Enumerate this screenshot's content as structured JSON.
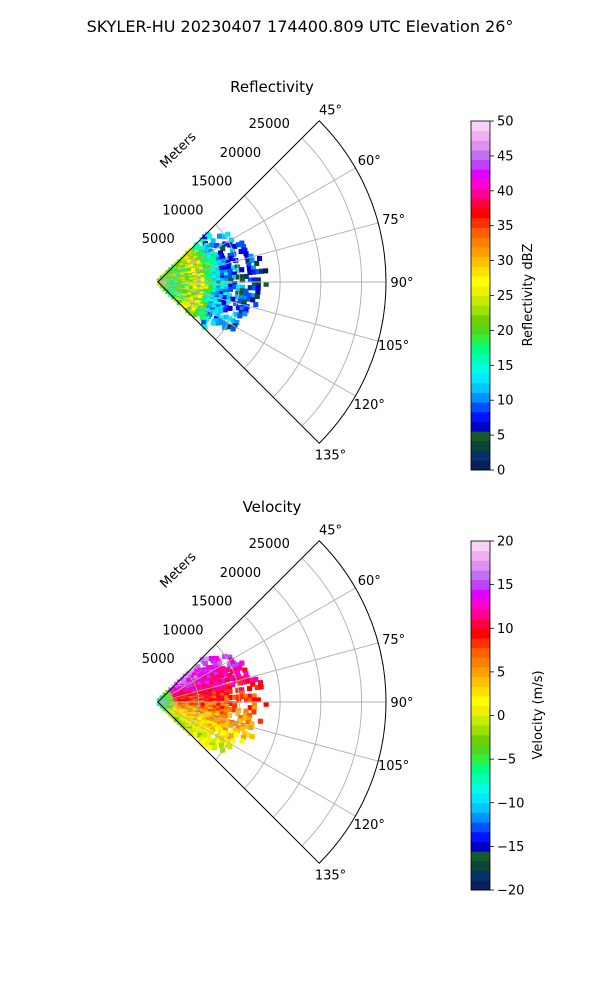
{
  "suptitle": "SKYLER-HU  20230407  174400.809 UTC Elevation 26°",
  "chart_data": [
    {
      "type": "heatmap",
      "title": "Reflectivity",
      "field": "reflectivity",
      "radial_label": "Meters",
      "radial_ticks": [
        5000,
        10000,
        15000,
        20000,
        25000
      ],
      "radial_tick_labels": [
        "5000",
        "10000",
        "15000",
        "20000",
        "25000"
      ],
      "radial_max": 28000,
      "azimuth_range_deg": [
        45,
        135
      ],
      "azimuth_ticks": [
        45,
        60,
        75,
        90,
        105,
        120,
        135
      ],
      "azimuth_tick_labels": [
        "45°",
        "60°",
        "75°",
        "90°",
        "105°",
        "120°",
        "135°"
      ],
      "data_extent_m": [
        0,
        14500
      ],
      "grid": true,
      "colorbar": {
        "label": "Reflectivity dBZ",
        "range": [
          0,
          50
        ],
        "ticks": [
          0,
          5,
          10,
          15,
          20,
          25,
          30,
          35,
          40,
          45,
          50
        ],
        "tick_labels": [
          "0",
          "5",
          "10",
          "15",
          "20",
          "25",
          "30",
          "35",
          "40",
          "45",
          "50"
        ],
        "colors": [
          "#0a1f5c",
          "#07316b",
          "#0e4436",
          "#165a2c",
          "#0000c8",
          "#0014ff",
          "#0050ff",
          "#0090ff",
          "#00c8ff",
          "#00e8ff",
          "#00ffe0",
          "#00ffb0",
          "#00ff80",
          "#30f040",
          "#50d820",
          "#70d000",
          "#a0e000",
          "#c8ec00",
          "#eef000",
          "#ffff00",
          "#ffe000",
          "#ffc000",
          "#ffa000",
          "#ff8000",
          "#ff6000",
          "#ff3000",
          "#ff0000",
          "#ff0040",
          "#ff0090",
          "#ff00d0",
          "#e000ff",
          "#c040ff",
          "#c070f0",
          "#e090f0",
          "#f0b0f0",
          "#f8d0f8"
        ]
      }
    },
    {
      "type": "heatmap",
      "title": "Velocity",
      "field": "velocity",
      "radial_label": "Meters",
      "radial_ticks": [
        5000,
        10000,
        15000,
        20000,
        25000
      ],
      "radial_tick_labels": [
        "5000",
        "10000",
        "15000",
        "20000",
        "25000"
      ],
      "radial_max": 28000,
      "azimuth_range_deg": [
        45,
        135
      ],
      "azimuth_ticks": [
        45,
        60,
        75,
        90,
        105,
        120,
        135
      ],
      "azimuth_tick_labels": [
        "45°",
        "60°",
        "75°",
        "90°",
        "105°",
        "120°",
        "135°"
      ],
      "data_extent_m": [
        0,
        14500
      ],
      "grid": true,
      "colorbar": {
        "label": "Velocity (m/s)",
        "range": [
          -20,
          20
        ],
        "ticks": [
          -20,
          -15,
          -10,
          -5,
          0,
          5,
          10,
          15,
          20
        ],
        "tick_labels": [
          "−20",
          "−15",
          "−10",
          "−5",
          "0",
          "5",
          "10",
          "15",
          "20"
        ],
        "colors": [
          "#0a1f5c",
          "#07316b",
          "#0e4436",
          "#165a2c",
          "#0000c8",
          "#0014ff",
          "#0050ff",
          "#0090ff",
          "#00c8ff",
          "#00e8ff",
          "#00ffe0",
          "#00ffb0",
          "#00ff80",
          "#30f040",
          "#50d820",
          "#70d000",
          "#a0e000",
          "#c8ec00",
          "#eef000",
          "#ffff00",
          "#ffe000",
          "#ffc000",
          "#ffa000",
          "#ff8000",
          "#ff6000",
          "#ff3000",
          "#ff0000",
          "#ff0040",
          "#ff0090",
          "#ff00d0",
          "#e000ff",
          "#c040ff",
          "#c070f0",
          "#e090f0",
          "#f0b0f0",
          "#f8d0f8"
        ]
      }
    }
  ]
}
